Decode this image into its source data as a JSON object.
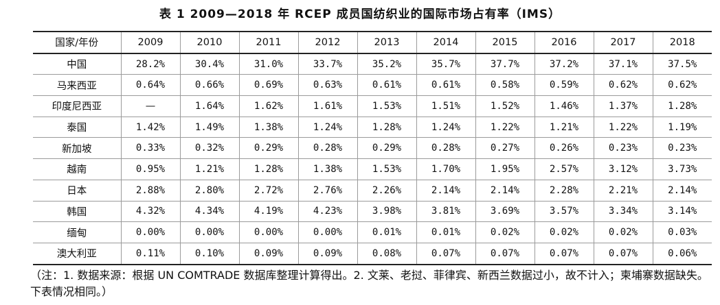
{
  "title": "表 1    2009—2018 年 RCEP 成员国纺织业的国际市场占有率（IMS）",
  "table": {
    "header": [
      "国家/年份",
      "2009",
      "2010",
      "2011",
      "2012",
      "2013",
      "2014",
      "2015",
      "2016",
      "2017",
      "2018"
    ],
    "rows": [
      [
        "中国",
        "28.2%",
        "30.4%",
        "31.0%",
        "33.7%",
        "35.2%",
        "35.7%",
        "37.7%",
        "37.2%",
        "37.1%",
        "37.5%"
      ],
      [
        "马来西亚",
        "0.64%",
        "0.66%",
        "0.69%",
        "0.63%",
        "0.61%",
        "0.61%",
        "0.58%",
        "0.59%",
        "0.62%",
        "0.62%"
      ],
      [
        "印度尼西亚",
        "—",
        "1.64%",
        "1.62%",
        "1.61%",
        "1.53%",
        "1.51%",
        "1.52%",
        "1.46%",
        "1.37%",
        "1.28%"
      ],
      [
        "泰国",
        "1.42%",
        "1.49%",
        "1.38%",
        "1.24%",
        "1.28%",
        "1.24%",
        "1.22%",
        "1.21%",
        "1.22%",
        "1.19%"
      ],
      [
        "新加坡",
        "0.33%",
        "0.32%",
        "0.29%",
        "0.28%",
        "0.29%",
        "0.28%",
        "0.27%",
        "0.26%",
        "0.23%",
        "0.23%"
      ],
      [
        "越南",
        "0.95%",
        "1.21%",
        "1.28%",
        "1.38%",
        "1.53%",
        "1.70%",
        "1.95%",
        "2.57%",
        "3.12%",
        "3.73%"
      ],
      [
        "日本",
        "2.88%",
        "2.80%",
        "2.72%",
        "2.76%",
        "2.26%",
        "2.14%",
        "2.14%",
        "2.28%",
        "2.21%",
        "2.14%"
      ],
      [
        "韩国",
        "4.32%",
        "4.34%",
        "4.19%",
        "4.23%",
        "3.98%",
        "3.81%",
        "3.69%",
        "3.57%",
        "3.34%",
        "3.14%"
      ],
      [
        "缅甸",
        "0.00%",
        "0.00%",
        "0.00%",
        "0.00%",
        "0.01%",
        "0.01%",
        "0.02%",
        "0.02%",
        "0.02%",
        "0.03%"
      ],
      [
        "澳大利亚",
        "0.11%",
        "0.10%",
        "0.09%",
        "0.09%",
        "0.08%",
        "0.07%",
        "0.07%",
        "0.07%",
        "0.07%",
        "0.06%"
      ]
    ]
  },
  "note": "（注：1. 数据来源：根据 UN  COMTRADE 数据库整理计算得出。2. 文莱、老挝、菲律宾、新西兰数据过小，故不计入；柬埔寨数据缺失。下表情况相同。）"
}
